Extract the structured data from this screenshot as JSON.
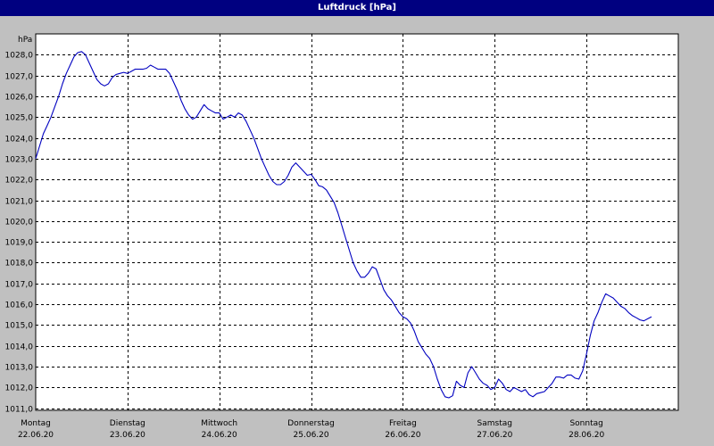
{
  "window": {
    "title": "Luftdruck [hPa]"
  },
  "chart_data": {
    "type": "line",
    "title": "Luftdruck [hPa]",
    "ylabel": "hPa",
    "xlabel": "",
    "ylim": [
      1010.9,
      1029.0
    ],
    "xlim": [
      0,
      168
    ],
    "grid": true,
    "x_unit": "hours from 22.06.20 00:00",
    "yticks": [
      1011.0,
      1012.0,
      1013.0,
      1014.0,
      1015.0,
      1016.0,
      1017.0,
      1018.0,
      1019.0,
      1020.0,
      1021.0,
      1022.0,
      1023.0,
      1024.0,
      1025.0,
      1026.0,
      1027.0,
      1028.0
    ],
    "ytick_labels": [
      "1011,0",
      "1012,0",
      "1013,0",
      "1014,0",
      "1015,0",
      "1016,0",
      "1017,0",
      "1018,0",
      "1019,0",
      "1020,0",
      "1021,0",
      "1022,0",
      "1023,0",
      "1024,0",
      "1025,0",
      "1026,0",
      "1027,0",
      "1028,0"
    ],
    "days": [
      {
        "weekday": "Montag",
        "date": "22.06.20"
      },
      {
        "weekday": "Dienstag",
        "date": "23.06.20"
      },
      {
        "weekday": "Mittwoch",
        "date": "24.06.20"
      },
      {
        "weekday": "Donnerstag",
        "date": "25.06.20"
      },
      {
        "weekday": "Freitag",
        "date": "26.06.20"
      },
      {
        "weekday": "Samstag",
        "date": "27.06.20"
      },
      {
        "weekday": "Sonntag",
        "date": "28.06.20"
      }
    ],
    "series": [
      {
        "color": "#0000c0",
        "points": [
          [
            0,
            1023.0
          ],
          [
            1,
            1023.6
          ],
          [
            2,
            1024.2
          ],
          [
            3,
            1024.6
          ],
          [
            4,
            1025.0
          ],
          [
            5,
            1025.5
          ],
          [
            6,
            1026.0
          ],
          [
            7,
            1026.6
          ],
          [
            8,
            1027.1
          ],
          [
            9,
            1027.5
          ],
          [
            10,
            1027.9
          ],
          [
            11,
            1028.1
          ],
          [
            12,
            1028.15
          ],
          [
            13,
            1028.0
          ],
          [
            14,
            1027.6
          ],
          [
            15,
            1027.2
          ],
          [
            16,
            1026.8
          ],
          [
            17,
            1026.6
          ],
          [
            18,
            1026.5
          ],
          [
            19,
            1026.6
          ],
          [
            20,
            1026.9
          ],
          [
            21,
            1027.05
          ],
          [
            22,
            1027.1
          ],
          [
            23,
            1027.15
          ],
          [
            24,
            1027.1
          ],
          [
            25,
            1027.2
          ],
          [
            26,
            1027.3
          ],
          [
            27,
            1027.3
          ],
          [
            28,
            1027.3
          ],
          [
            29,
            1027.35
          ],
          [
            30,
            1027.5
          ],
          [
            31,
            1027.4
          ],
          [
            32,
            1027.3
          ],
          [
            33,
            1027.3
          ],
          [
            34,
            1027.3
          ],
          [
            35,
            1027.1
          ],
          [
            36,
            1026.7
          ],
          [
            37,
            1026.3
          ],
          [
            38,
            1025.8
          ],
          [
            39,
            1025.4
          ],
          [
            40,
            1025.1
          ],
          [
            41,
            1024.9
          ],
          [
            42,
            1025.0
          ],
          [
            43,
            1025.3
          ],
          [
            44,
            1025.6
          ],
          [
            45,
            1025.4
          ],
          [
            46,
            1025.3
          ],
          [
            47,
            1025.2
          ],
          [
            48,
            1025.2
          ],
          [
            49,
            1024.9
          ],
          [
            50,
            1025.0
          ],
          [
            51,
            1025.1
          ],
          [
            52,
            1025.0
          ],
          [
            53,
            1025.2
          ],
          [
            54,
            1025.1
          ],
          [
            55,
            1024.8
          ],
          [
            56,
            1024.4
          ],
          [
            57,
            1024.0
          ],
          [
            58,
            1023.5
          ],
          [
            59,
            1023.0
          ],
          [
            60,
            1022.6
          ],
          [
            61,
            1022.2
          ],
          [
            62,
            1021.9
          ],
          [
            63,
            1021.75
          ],
          [
            64,
            1021.75
          ],
          [
            65,
            1021.9
          ],
          [
            66,
            1022.2
          ],
          [
            67,
            1022.6
          ],
          [
            68,
            1022.8
          ],
          [
            69,
            1022.6
          ],
          [
            70,
            1022.4
          ],
          [
            71,
            1022.2
          ],
          [
            72,
            1022.25
          ],
          [
            73,
            1022.0
          ],
          [
            74,
            1021.7
          ],
          [
            75,
            1021.65
          ],
          [
            76,
            1021.5
          ],
          [
            77,
            1021.2
          ],
          [
            78,
            1020.9
          ],
          [
            79,
            1020.4
          ],
          [
            80,
            1019.8
          ],
          [
            81,
            1019.2
          ],
          [
            82,
            1018.6
          ],
          [
            83,
            1018.0
          ],
          [
            84,
            1017.6
          ],
          [
            85,
            1017.3
          ],
          [
            86,
            1017.3
          ],
          [
            87,
            1017.5
          ],
          [
            88,
            1017.8
          ],
          [
            89,
            1017.7
          ],
          [
            90,
            1017.2
          ],
          [
            91,
            1016.7
          ],
          [
            92,
            1016.4
          ],
          [
            93,
            1016.2
          ],
          [
            94,
            1015.9
          ],
          [
            95,
            1015.6
          ],
          [
            96,
            1015.4
          ],
          [
            97,
            1015.3
          ],
          [
            98,
            1015.1
          ],
          [
            99,
            1014.7
          ],
          [
            100,
            1014.2
          ],
          [
            101,
            1013.9
          ],
          [
            102,
            1013.6
          ],
          [
            103,
            1013.4
          ],
          [
            104,
            1013.0
          ],
          [
            105,
            1012.4
          ],
          [
            106,
            1011.9
          ],
          [
            107,
            1011.55
          ],
          [
            108,
            1011.5
          ],
          [
            109,
            1011.6
          ],
          [
            110,
            1012.3
          ],
          [
            111,
            1012.1
          ],
          [
            112,
            1012.0
          ],
          [
            113,
            1012.7
          ],
          [
            114,
            1013.0
          ],
          [
            115,
            1012.7
          ],
          [
            116,
            1012.4
          ],
          [
            117,
            1012.2
          ],
          [
            118,
            1012.1
          ],
          [
            119,
            1011.9
          ],
          [
            120,
            1012.0
          ],
          [
            121,
            1012.4
          ],
          [
            122,
            1012.2
          ],
          [
            123,
            1011.9
          ],
          [
            124,
            1011.8
          ],
          [
            125,
            1012.0
          ],
          [
            126,
            1011.9
          ],
          [
            127,
            1011.8
          ],
          [
            128,
            1011.9
          ],
          [
            129,
            1011.65
          ],
          [
            130,
            1011.55
          ],
          [
            131,
            1011.7
          ],
          [
            132,
            1011.75
          ],
          [
            133,
            1011.8
          ],
          [
            134,
            1012.0
          ],
          [
            135,
            1012.2
          ],
          [
            136,
            1012.5
          ],
          [
            137,
            1012.5
          ],
          [
            138,
            1012.45
          ],
          [
            139,
            1012.6
          ],
          [
            140,
            1012.6
          ],
          [
            141,
            1012.45
          ],
          [
            142,
            1012.4
          ],
          [
            143,
            1012.8
          ],
          [
            144,
            1013.6
          ],
          [
            145,
            1014.5
          ],
          [
            146,
            1015.2
          ],
          [
            147,
            1015.6
          ],
          [
            148,
            1016.1
          ],
          [
            149,
            1016.5
          ],
          [
            150,
            1016.4
          ],
          [
            151,
            1016.3
          ],
          [
            152,
            1016.1
          ],
          [
            153,
            1015.9
          ],
          [
            154,
            1015.8
          ],
          [
            155,
            1015.6
          ],
          [
            156,
            1015.45
          ],
          [
            157,
            1015.35
          ],
          [
            158,
            1015.25
          ],
          [
            159,
            1015.2
          ],
          [
            160,
            1015.3
          ],
          [
            161,
            1015.4
          ]
        ]
      }
    ]
  }
}
